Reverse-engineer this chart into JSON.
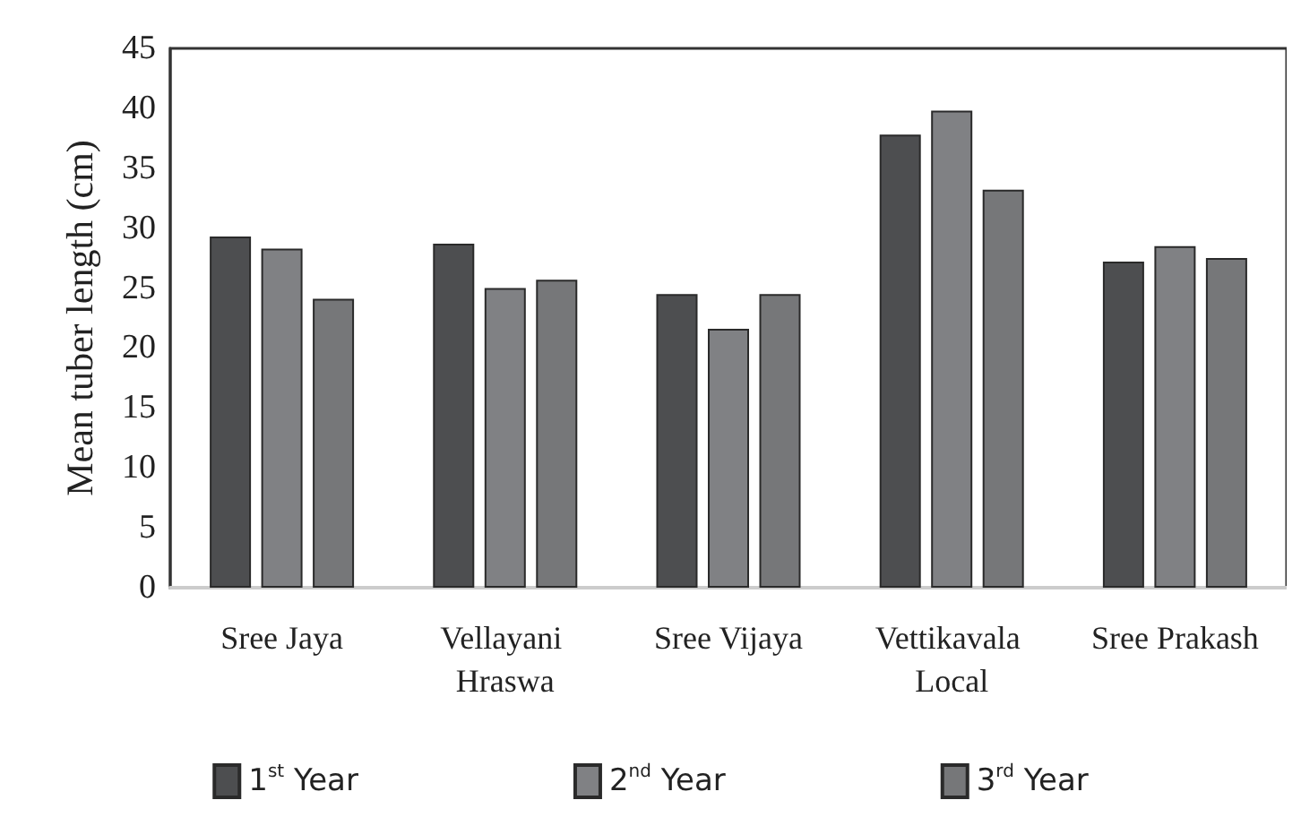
{
  "chart_data": {
    "type": "bar",
    "ylabel": "Mean tuber length (cm)",
    "categories": [
      "Sree Jaya",
      "Vellayani Hraswa",
      "Sree Vijaya",
      "Vettikavala Local",
      "Sree Prakash"
    ],
    "series": [
      {
        "name": "1$^{st}$ Year",
        "color": "#4d4e50",
        "values": [
          29.3,
          28.7,
          24.5,
          37.8,
          27.2
        ]
      },
      {
        "name": "2$^{nd}$ Year",
        "color": "#808184",
        "values": [
          28.3,
          25.0,
          21.6,
          39.8,
          28.5
        ]
      },
      {
        "name": "3$^{rd}$ Year",
        "color": "#767779",
        "values": [
          24.1,
          25.7,
          24.5,
          33.2,
          27.5
        ]
      }
    ],
    "ylim": [
      0,
      45
    ],
    "yticks": [
      0,
      5,
      10,
      15,
      20,
      25,
      30,
      35,
      40,
      45
    ],
    "grid": false,
    "legend": "bottom"
  }
}
